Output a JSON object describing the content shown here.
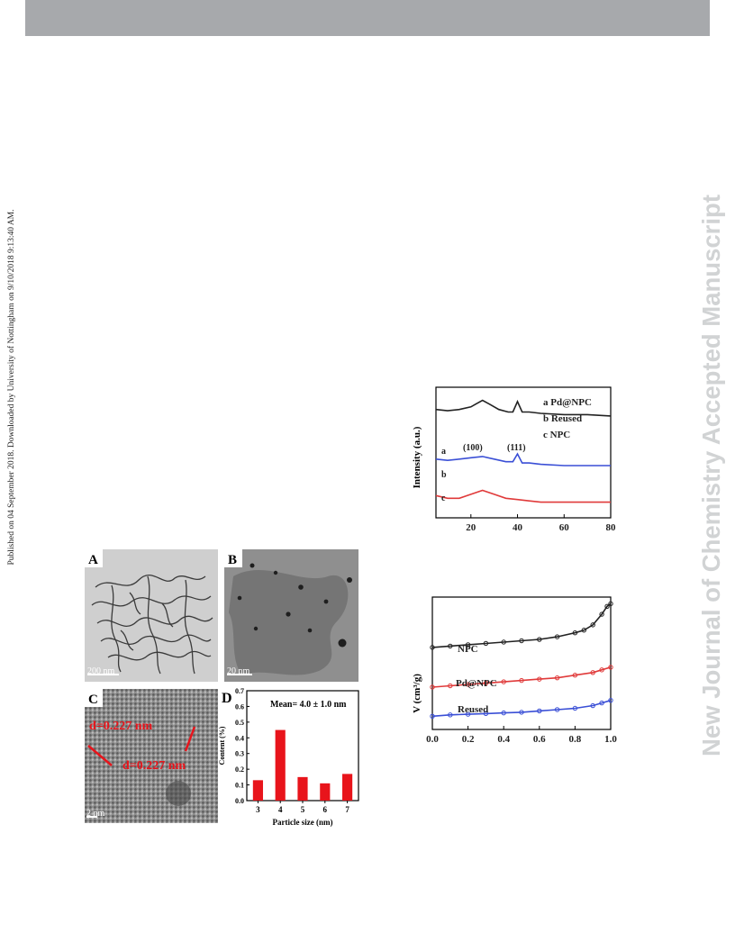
{
  "page": {
    "side_note": "Published on 04 September 2018. Downloaded by University of Nottingham on 9/10/2018 9:13:40 AM.",
    "watermark": "New Journal of Chemistry Accepted Manuscript"
  },
  "tem_figure": {
    "panels": {
      "A": {
        "label": "A",
        "scale_bar": "200 nm"
      },
      "B": {
        "label": "B",
        "scale_bar": "20 nm"
      },
      "C": {
        "label": "C",
        "scale_bar": "2 nm",
        "lattice_labels": [
          "d=0.227 nm",
          "d=0.227 nm"
        ]
      }
    }
  },
  "chart_data": [
    {
      "id": "D",
      "type": "bar",
      "panel_label": "D",
      "annotation": "Mean= 4.0 ± 1.0 nm",
      "xlabel": "Particle size (nm)",
      "ylabel": "Content (%)",
      "categories": [
        "3",
        "4",
        "5",
        "6",
        "7"
      ],
      "values": [
        0.13,
        0.45,
        0.15,
        0.11,
        0.17
      ],
      "ylim": [
        0,
        0.7
      ],
      "yticks": [
        "0.0",
        "0.1",
        "0.2",
        "0.3",
        "0.4",
        "0.5",
        "0.6",
        "0.7"
      ],
      "bar_color": "#e8141b"
    },
    {
      "id": "xrd",
      "type": "line",
      "ylabel": "Intensity (a.u.)",
      "xlabel": "",
      "xlim": [
        5,
        80
      ],
      "xticks": [
        "20",
        "40",
        "60",
        "80"
      ],
      "legend": [
        "a Pd@NPC",
        "b  Reused",
        "c    NPC"
      ],
      "legend_position": "top-right",
      "peak_labels": [
        "(100)",
        "(111)"
      ],
      "series": [
        {
          "name": "a",
          "color": "#222222",
          "x": [
            5,
            10,
            15,
            20,
            22,
            25,
            28,
            32,
            36,
            38,
            40,
            42,
            45,
            50,
            60,
            70,
            80
          ],
          "y": [
            0.83,
            0.82,
            0.83,
            0.85,
            0.87,
            0.9,
            0.87,
            0.83,
            0.81,
            0.81,
            0.89,
            0.81,
            0.81,
            0.8,
            0.79,
            0.79,
            0.78
          ]
        },
        {
          "name": "b",
          "color": "#3a4fd6",
          "x": [
            5,
            10,
            15,
            20,
            25,
            30,
            35,
            38,
            40,
            42,
            45,
            50,
            60,
            70,
            80
          ],
          "y": [
            0.45,
            0.44,
            0.45,
            0.46,
            0.47,
            0.45,
            0.43,
            0.43,
            0.49,
            0.42,
            0.42,
            0.41,
            0.4,
            0.4,
            0.4
          ]
        },
        {
          "name": "c",
          "color": "#e03a3a",
          "x": [
            5,
            10,
            15,
            20,
            25,
            30,
            35,
            40,
            45,
            50,
            60,
            70,
            80
          ],
          "y": [
            0.17,
            0.15,
            0.15,
            0.18,
            0.21,
            0.18,
            0.15,
            0.14,
            0.13,
            0.12,
            0.12,
            0.12,
            0.12
          ]
        }
      ],
      "series_labels": [
        "a",
        "b",
        "c"
      ]
    },
    {
      "id": "isotherm",
      "type": "line",
      "ylabel": "V (cm³/g)",
      "xlabel": "",
      "xlim": [
        0.0,
        1.0
      ],
      "xticks": [
        "0.0",
        "0.2",
        "0.4",
        "0.6",
        "0.8",
        "1.0"
      ],
      "series": [
        {
          "name": "NPC",
          "color": "#222222",
          "x": [
            0.0,
            0.1,
            0.2,
            0.3,
            0.4,
            0.5,
            0.6,
            0.7,
            0.8,
            0.85,
            0.9,
            0.95,
            0.98,
            1.0
          ],
          "y": [
            0.62,
            0.63,
            0.64,
            0.65,
            0.66,
            0.67,
            0.68,
            0.7,
            0.73,
            0.75,
            0.79,
            0.87,
            0.93,
            0.95
          ]
        },
        {
          "name": "Pd@NPC",
          "color": "#e03a3a",
          "x": [
            0.0,
            0.1,
            0.2,
            0.3,
            0.4,
            0.5,
            0.6,
            0.7,
            0.8,
            0.9,
            0.95,
            1.0
          ],
          "y": [
            0.32,
            0.33,
            0.34,
            0.35,
            0.36,
            0.37,
            0.38,
            0.39,
            0.41,
            0.43,
            0.45,
            0.47
          ]
        },
        {
          "name": "Reused",
          "color": "#3a4fd6",
          "x": [
            0.0,
            0.1,
            0.2,
            0.3,
            0.4,
            0.5,
            0.6,
            0.7,
            0.8,
            0.9,
            0.95,
            1.0
          ],
          "y": [
            0.1,
            0.11,
            0.115,
            0.12,
            0.125,
            0.13,
            0.14,
            0.15,
            0.16,
            0.18,
            0.2,
            0.22
          ]
        }
      ]
    }
  ]
}
